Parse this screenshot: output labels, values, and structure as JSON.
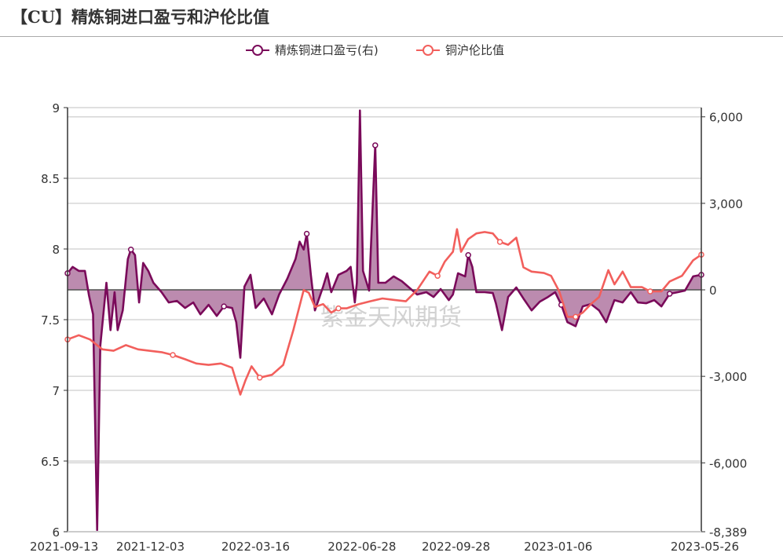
{
  "title": "【CU】精炼铜进口盈亏和沪伦比值",
  "watermark": "紫金天风期货",
  "chart_data": {
    "type": "line",
    "title": "【CU】精炼铜进口盈亏和沪伦比值",
    "legend": {
      "placement": "top-center",
      "entries": [
        "精炼铜进口盈亏(右)",
        "铜沪伦比值"
      ]
    },
    "grid": true,
    "x_axis": {
      "type": "date",
      "range": [
        "2021-09-13",
        "2023-05-26"
      ],
      "tick_labels": [
        "2021-09-13",
        "2021-12-03",
        "2022-03-16",
        "2022-06-28",
        "2022-09-28",
        "2023-01-06",
        "2023-05-26"
      ]
    },
    "y_left": {
      "range": [
        6,
        9
      ],
      "tick_labels": [
        "6",
        "6.5",
        "7",
        "7.5",
        "8",
        "8.5",
        "9"
      ],
      "ticks": [
        6,
        6.5,
        7,
        7.5,
        8,
        8.5,
        9
      ]
    },
    "y_right": {
      "range": [
        -8389,
        6320
      ],
      "tick_labels": [
        "-8,389",
        "-6,000",
        "-3,000",
        "0",
        "3,000",
        "6,000"
      ],
      "ticks": [
        -8389,
        -6000,
        -3000,
        0,
        3000,
        6000
      ]
    },
    "colors": {
      "profit": "#7a0a5a",
      "profit_fill": "#b57ea6",
      "ratio": "#f25f5c",
      "axis": "#333333",
      "grid": "#d6d6d6"
    },
    "series": [
      {
        "name": "精炼铜进口盈亏(右)",
        "axis": "right",
        "area": true,
        "points": [
          [
            "2021-09-13",
            575
          ],
          [
            "2021-09-18",
            795
          ],
          [
            "2021-09-24",
            658
          ],
          [
            "2021-09-30",
            658
          ],
          [
            "2021-10-04",
            -192
          ],
          [
            "2021-10-08",
            -849
          ],
          [
            "2021-10-12",
            -8329
          ],
          [
            "2021-10-15",
            -1945
          ],
          [
            "2021-10-21",
            247
          ],
          [
            "2021-10-25",
            -1397
          ],
          [
            "2021-10-29",
            -82
          ],
          [
            "2021-11-01",
            -1397
          ],
          [
            "2021-11-06",
            -712
          ],
          [
            "2021-11-11",
            1068
          ],
          [
            "2021-11-14",
            1397
          ],
          [
            "2021-11-18",
            1205
          ],
          [
            "2021-11-22",
            -438
          ],
          [
            "2021-11-26",
            932
          ],
          [
            "2021-12-01",
            658
          ],
          [
            "2021-12-06",
            247
          ],
          [
            "2021-12-14",
            -82
          ],
          [
            "2021-12-21",
            -438
          ],
          [
            "2021-12-29",
            -384
          ],
          [
            "2022-01-06",
            -630
          ],
          [
            "2022-01-14",
            -438
          ],
          [
            "2022-01-21",
            -849
          ],
          [
            "2022-01-29",
            -521
          ],
          [
            "2022-02-06",
            -904
          ],
          [
            "2022-02-13",
            -575
          ],
          [
            "2022-02-21",
            -630
          ],
          [
            "2022-02-25",
            -1123
          ],
          [
            "2022-03-01",
            -2356
          ],
          [
            "2022-03-05",
            110
          ],
          [
            "2022-03-11",
            521
          ],
          [
            "2022-03-16",
            -630
          ],
          [
            "2022-03-24",
            -301
          ],
          [
            "2022-04-01",
            -849
          ],
          [
            "2022-04-08",
            -164
          ],
          [
            "2022-04-16",
            384
          ],
          [
            "2022-04-24",
            1068
          ],
          [
            "2022-04-28",
            1671
          ],
          [
            "2022-05-02",
            1397
          ],
          [
            "2022-05-05",
            1945
          ],
          [
            "2022-05-09",
            521
          ],
          [
            "2022-05-13",
            -712
          ],
          [
            "2022-05-21",
            110
          ],
          [
            "2022-05-25",
            575
          ],
          [
            "2022-05-29",
            -82
          ],
          [
            "2022-06-05",
            521
          ],
          [
            "2022-06-13",
            658
          ],
          [
            "2022-06-17",
            795
          ],
          [
            "2022-06-21",
            -438
          ],
          [
            "2022-06-23",
            247
          ],
          [
            "2022-06-26",
            6219
          ],
          [
            "2022-06-29",
            658
          ],
          [
            "2022-07-05",
            -27
          ],
          [
            "2022-07-11",
            5014
          ],
          [
            "2022-07-14",
            247
          ],
          [
            "2022-07-21",
            247
          ],
          [
            "2022-07-29",
            466
          ],
          [
            "2022-08-06",
            301
          ],
          [
            "2022-08-14",
            55
          ],
          [
            "2022-08-21",
            -164
          ],
          [
            "2022-08-30",
            -82
          ],
          [
            "2022-09-06",
            -247
          ],
          [
            "2022-09-13",
            27
          ],
          [
            "2022-09-21",
            -356
          ],
          [
            "2022-09-25",
            -164
          ],
          [
            "2022-09-30",
            575
          ],
          [
            "2022-10-07",
            466
          ],
          [
            "2022-10-10",
            1205
          ],
          [
            "2022-10-14",
            795
          ],
          [
            "2022-10-18",
            -82
          ],
          [
            "2022-10-26",
            -82
          ],
          [
            "2022-11-03",
            -110
          ],
          [
            "2022-11-06",
            -466
          ],
          [
            "2022-11-12",
            -1397
          ],
          [
            "2022-11-18",
            -247
          ],
          [
            "2022-11-26",
            82
          ],
          [
            "2022-12-03",
            -301
          ],
          [
            "2022-12-11",
            -712
          ],
          [
            "2022-12-19",
            -411
          ],
          [
            "2022-12-27",
            -247
          ],
          [
            "2023-01-03",
            -82
          ],
          [
            "2023-01-09",
            -521
          ],
          [
            "2023-01-15",
            -1123
          ],
          [
            "2023-01-23",
            -1260
          ],
          [
            "2023-01-30",
            -575
          ],
          [
            "2023-02-07",
            -493
          ],
          [
            "2023-02-15",
            -712
          ],
          [
            "2023-02-22",
            -1123
          ],
          [
            "2023-03-02",
            -356
          ],
          [
            "2023-03-10",
            -438
          ],
          [
            "2023-03-18",
            -82
          ],
          [
            "2023-03-25",
            -438
          ],
          [
            "2023-04-02",
            -466
          ],
          [
            "2023-04-10",
            -356
          ],
          [
            "2023-04-17",
            -575
          ],
          [
            "2023-04-25",
            -137
          ],
          [
            "2023-05-03",
            -82
          ],
          [
            "2023-05-10",
            -27
          ],
          [
            "2023-05-18",
            466
          ],
          [
            "2023-05-26",
            521
          ]
        ]
      },
      {
        "name": "铜沪伦比值",
        "axis": "left",
        "area": false,
        "points": [
          [
            "2021-09-13",
            7.36
          ],
          [
            "2021-09-24",
            7.39
          ],
          [
            "2021-10-05",
            7.36
          ],
          [
            "2021-10-17",
            7.29
          ],
          [
            "2021-10-28",
            7.28
          ],
          [
            "2021-11-09",
            7.32
          ],
          [
            "2021-11-21",
            7.29
          ],
          [
            "2021-12-02",
            7.28
          ],
          [
            "2021-12-14",
            7.27
          ],
          [
            "2021-12-25",
            7.25
          ],
          [
            "2022-01-06",
            7.22
          ],
          [
            "2022-01-17",
            7.19
          ],
          [
            "2022-01-29",
            7.18
          ],
          [
            "2022-02-10",
            7.19
          ],
          [
            "2022-02-21",
            7.16
          ],
          [
            "2022-03-01",
            6.97
          ],
          [
            "2022-03-06",
            7.07
          ],
          [
            "2022-03-12",
            7.17
          ],
          [
            "2022-03-20",
            7.09
          ],
          [
            "2022-04-01",
            7.11
          ],
          [
            "2022-04-12",
            7.18
          ],
          [
            "2022-04-22",
            7.43
          ],
          [
            "2022-05-02",
            7.71
          ],
          [
            "2022-05-07",
            7.69
          ],
          [
            "2022-05-13",
            7.59
          ],
          [
            "2022-05-21",
            7.61
          ],
          [
            "2022-05-29",
            7.55
          ],
          [
            "2022-06-05",
            7.58
          ],
          [
            "2022-06-13",
            7.58
          ],
          [
            "2022-06-25",
            7.61
          ],
          [
            "2022-07-06",
            7.63
          ],
          [
            "2022-07-18",
            7.65
          ],
          [
            "2022-07-29",
            7.64
          ],
          [
            "2022-08-10",
            7.63
          ],
          [
            "2022-08-21",
            7.71
          ],
          [
            "2022-09-02",
            7.84
          ],
          [
            "2022-09-10",
            7.81
          ],
          [
            "2022-09-17",
            7.91
          ],
          [
            "2022-09-25",
            7.98
          ],
          [
            "2022-09-29",
            8.14
          ],
          [
            "2022-10-03",
            7.98
          ],
          [
            "2022-10-10",
            8.07
          ],
          [
            "2022-10-18",
            8.11
          ],
          [
            "2022-10-26",
            8.12
          ],
          [
            "2022-11-03",
            8.11
          ],
          [
            "2022-11-10",
            8.05
          ],
          [
            "2022-11-18",
            8.03
          ],
          [
            "2022-11-26",
            8.08
          ],
          [
            "2022-12-03",
            7.87
          ],
          [
            "2022-12-11",
            7.84
          ],
          [
            "2022-12-23",
            7.83
          ],
          [
            "2022-12-30",
            7.81
          ],
          [
            "2023-01-07",
            7.7
          ],
          [
            "2023-01-15",
            7.52
          ],
          [
            "2023-01-23",
            7.52
          ],
          [
            "2023-01-30",
            7.55
          ],
          [
            "2023-02-07",
            7.61
          ],
          [
            "2023-02-15",
            7.66
          ],
          [
            "2023-02-24",
            7.85
          ],
          [
            "2023-03-02",
            7.75
          ],
          [
            "2023-03-10",
            7.84
          ],
          [
            "2023-03-18",
            7.73
          ],
          [
            "2023-03-29",
            7.73
          ],
          [
            "2023-04-06",
            7.7
          ],
          [
            "2023-04-17",
            7.7
          ],
          [
            "2023-04-25",
            7.77
          ],
          [
            "2023-05-07",
            7.81
          ],
          [
            "2023-05-18",
            7.92
          ],
          [
            "2023-05-26",
            7.96
          ]
        ]
      }
    ]
  }
}
